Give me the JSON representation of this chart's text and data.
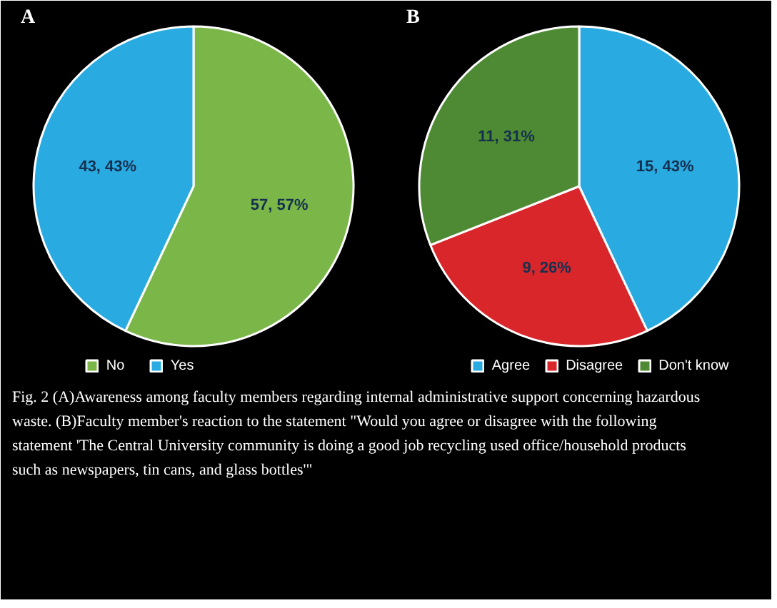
{
  "chart_data": [
    {
      "type": "pie",
      "title": "A",
      "categories": [
        "No",
        "Yes"
      ],
      "values": [
        57,
        43
      ],
      "colors": [
        "#7ab648",
        "#29abe2"
      ],
      "value_labels": [
        "57, 57%",
        "43, 43%"
      ],
      "legend": "bottom"
    },
    {
      "type": "pie",
      "title": "B",
      "categories": [
        "Agree",
        "Disagree",
        "Don't know"
      ],
      "values": [
        43,
        26,
        31
      ],
      "colors": [
        "#29abe2",
        "#d9262b",
        "#4e8a34"
      ],
      "value_labels": [
        "15, 43%",
        "9, 26%",
        "11, 31%"
      ],
      "legend": "bottom",
      "annotations": [
        "Fig. 2 (A)Awareness among faculty members regarding internal administrative support concerning hazardous waste. (B)Faculty member's reaction to the statement \"Would you agree or disagree with the following statement 'The Central University community is doing a good job recycling used office/household products such as newspapers, tin cans, and glass bottles'\""
      ]
    }
  ]
}
